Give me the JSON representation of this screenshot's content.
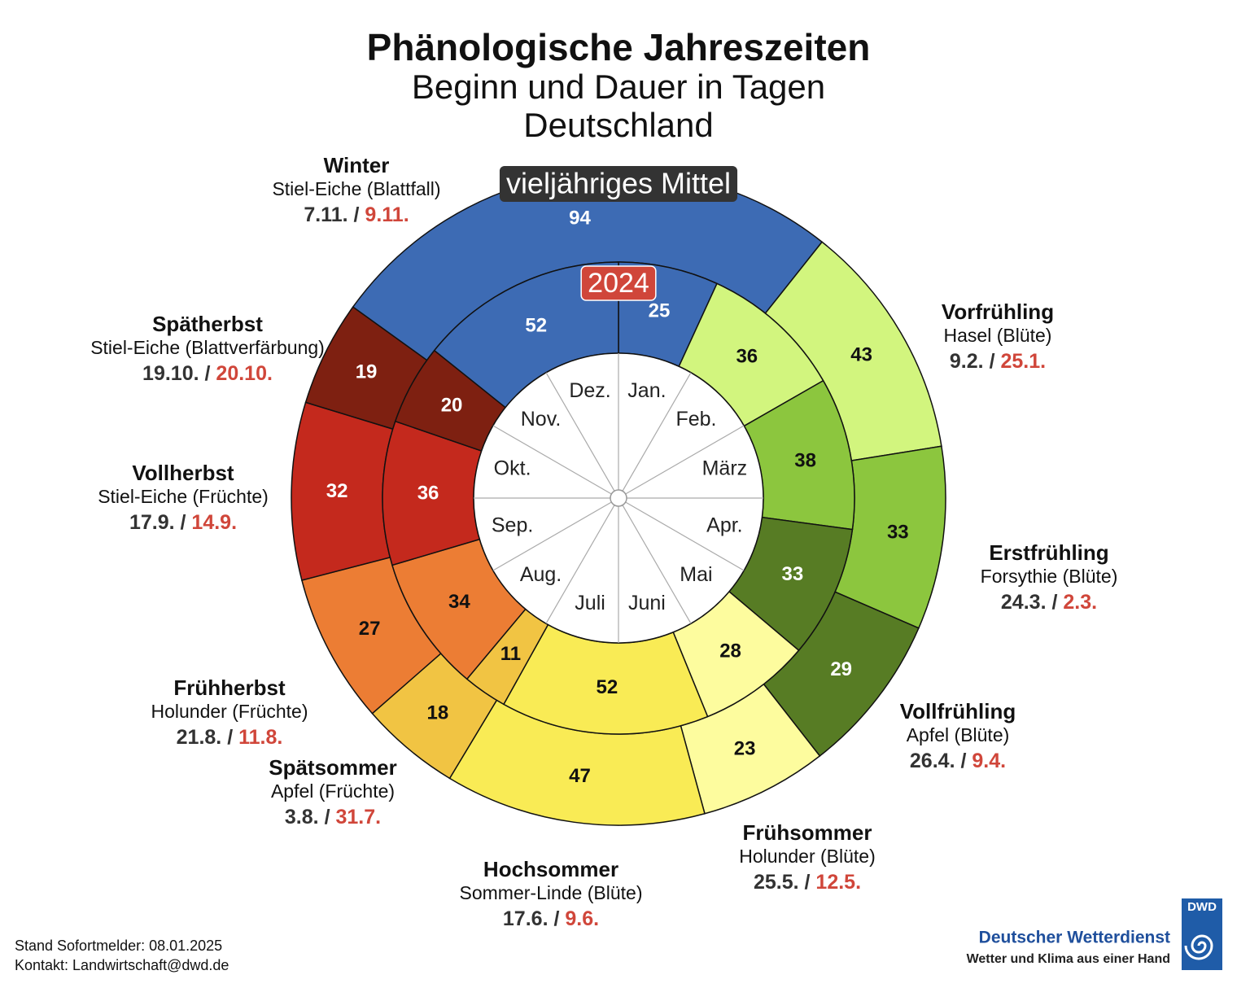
{
  "chart_data": {
    "type": "phenological-clock",
    "title": "Phänologische Jahreszeiten",
    "subtitle": "Beginn und Dauer in Tagen",
    "region": "Deutschland",
    "months": [
      "Jan.",
      "Feb.",
      "März",
      "Apr.",
      "Mai",
      "Juni",
      "Juli",
      "Aug.",
      "Sep.",
      "Okt.",
      "Nov.",
      "Dez."
    ],
    "date_separator": "/",
    "seasons": [
      {
        "name": "Vorfrühling",
        "plant": "Hasel (Blüte)",
        "dates": [
          "9.2.",
          "25.1."
        ],
        "color": "#d2f57e",
        "label_color": "#111111"
      },
      {
        "name": "Erstfrühling",
        "plant": "Forsythie (Blüte)",
        "dates": [
          "24.3.",
          "2.3."
        ],
        "color": "#8cc63e",
        "label_color": "#111111"
      },
      {
        "name": "Vollfrühling",
        "plant": "Apfel (Blüte)",
        "dates": [
          "26.4.",
          "9.4."
        ],
        "color": "#577c24",
        "label_color": "#ffffff"
      },
      {
        "name": "Frühsommer",
        "plant": "Holunder (Blüte)",
        "dates": [
          "25.5.",
          "12.5."
        ],
        "color": "#fdfc9e",
        "label_color": "#111111"
      },
      {
        "name": "Hochsommer",
        "plant": "Sommer-Linde (Blüte)",
        "dates": [
          "17.6.",
          "9.6."
        ],
        "color": "#f9eb55",
        "label_color": "#111111"
      },
      {
        "name": "Spätsommer",
        "plant": "Apfel (Früchte)",
        "dates": [
          "3.8.",
          "31.7."
        ],
        "color": "#f1c443",
        "label_color": "#111111"
      },
      {
        "name": "Frühherbst",
        "plant": "Holunder (Früchte)",
        "dates": [
          "21.8.",
          "11.8."
        ],
        "color": "#ec7d34",
        "label_color": "#111111"
      },
      {
        "name": "Vollherbst",
        "plant": "Stiel-Eiche (Früchte)",
        "dates": [
          "17.9.",
          "14.9."
        ],
        "color": "#c4291d",
        "label_color": "#ffffff"
      },
      {
        "name": "Spätherbst",
        "plant": "Stiel-Eiche (Blattverfärbung)",
        "dates": [
          "19.10.",
          "20.10."
        ],
        "color": "#7e2011",
        "label_color": "#ffffff"
      },
      {
        "name": "Winter",
        "plant": "Stiel-Eiche (Blattfall)",
        "dates": [
          "7.11.",
          "9.11."
        ],
        "color": "#3d6bb4",
        "label_color": "#ffffff"
      }
    ],
    "rings": [
      {
        "name": "vieljähriges Mittel",
        "badge_color": "#333333",
        "categories": [
          "Vorfrühling",
          "Erstfrühling",
          "Vollfrühling",
          "Frühsommer",
          "Hochsommer",
          "Spätsommer",
          "Frühherbst",
          "Vollherbst",
          "Spätherbst",
          "Winter"
        ],
        "values": [
          43,
          33,
          29,
          23,
          47,
          18,
          27,
          32,
          19,
          94
        ]
      },
      {
        "name": "2024",
        "badge_color": "#d0463a",
        "categories": [
          "Winter",
          "Vorfrühling",
          "Erstfrühling",
          "Vollfrühling",
          "Frühsommer",
          "Hochsommer",
          "Spätsommer",
          "Frühherbst",
          "Vollherbst",
          "Spätherbst",
          "Winter"
        ],
        "values": [
          25,
          36,
          38,
          33,
          28,
          52,
          11,
          34,
          36,
          20,
          52
        ]
      }
    ],
    "footer": [
      "Stand Sofortmelder: 08.01.2025",
      "Kontakt: Landwirtschaft@dwd.de"
    ],
    "logo": {
      "short": "DWD",
      "name": "Deutscher Wetterdienst",
      "slogan": "Wetter und Klima aus einer Hand"
    }
  }
}
